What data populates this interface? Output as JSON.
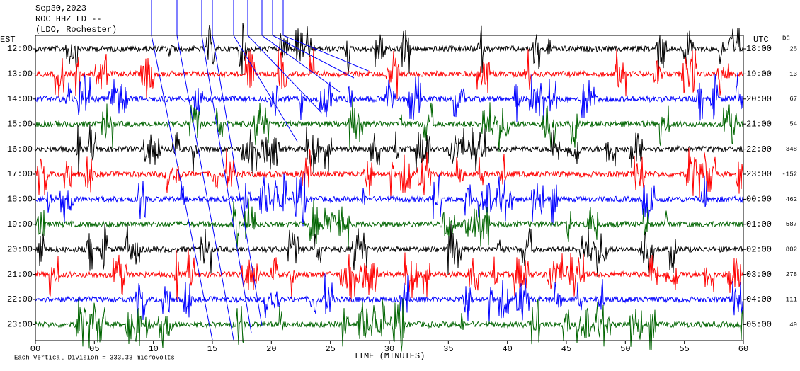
{
  "header": {
    "date": "Sep30,2023",
    "station": "ROC HHZ LD --",
    "location": "(LDO, Rochester)"
  },
  "left_axis": {
    "title": "EST",
    "labels": [
      "12:00",
      "13:00",
      "14:00",
      "15:00",
      "16:00",
      "17:00",
      "18:00",
      "19:00",
      "20:00",
      "21:00",
      "22:00",
      "23:00"
    ]
  },
  "right_axis": {
    "title": "UTC",
    "labels": [
      "18:00",
      "19:00",
      "20:00",
      "21:00",
      "22:00",
      "23:00",
      "00:00",
      "01:00",
      "02:00",
      "03:00",
      "04:00",
      "05:00"
    ]
  },
  "dc": {
    "title": "DC",
    "values": [
      25,
      13,
      67,
      54,
      348,
      -152,
      462,
      587,
      802,
      278,
      111,
      49
    ]
  },
  "x_axis": {
    "title": "TIME (MINUTES)",
    "ticks": [
      "00",
      "05",
      "10",
      "15",
      "20",
      "25",
      "30",
      "35",
      "40",
      "45",
      "50",
      "55",
      "60"
    ]
  },
  "footer": "Each Vertical Division =  333.33 microvolts"
}
